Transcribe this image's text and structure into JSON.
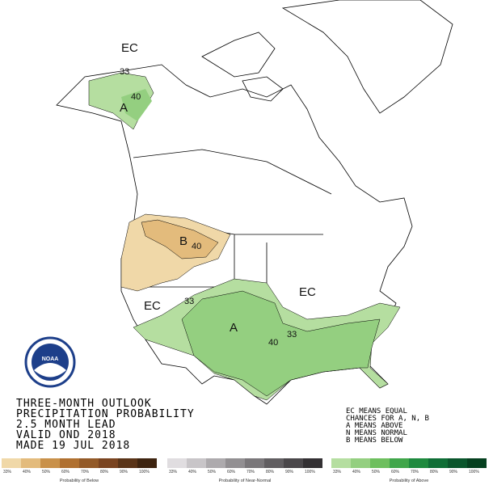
{
  "map": {
    "labels": [
      "EC",
      "33",
      "40",
      "A",
      "B",
      "40",
      "EC",
      "33",
      "A",
      "40",
      "33",
      "EC"
    ]
  },
  "logo": {
    "text": "NOAA"
  },
  "title": {
    "lines": [
      "THREE-MONTH OUTLOOK",
      "PRECIPITATION PROBABILITY",
      "2.5 MONTH LEAD",
      "VALID OND 2018",
      "MADE 19 JUL 2018"
    ]
  },
  "key": {
    "lines": [
      "EC MEANS EQUAL",
      "CHANCES FOR A, N, B",
      "A MEANS ABOVE",
      "N MEANS NORMAL",
      "B MEANS BELOW"
    ]
  },
  "colorbars": [
    {
      "caption": "Probability of Below",
      "labels": [
        "33%",
        "40%",
        "50%",
        "60%",
        "70%",
        "80%",
        "90%",
        "100%"
      ],
      "colors": [
        "#f0d8a8",
        "#e3bb7c",
        "#c9914a",
        "#b07030",
        "#935a28",
        "#7a4420",
        "#5a3418",
        "#3e2410"
      ]
    },
    {
      "caption": "Probability of Near-Normal",
      "labels": [
        "33%",
        "40%",
        "50%",
        "60%",
        "70%",
        "80%",
        "90%",
        "100%"
      ],
      "colors": [
        "#e0dde0",
        "#c8c5c8",
        "#adaaad",
        "#928f92",
        "#7a777a",
        "#615e61",
        "#4a474a",
        "#333033"
      ]
    },
    {
      "caption": "Probability of Above",
      "labels": [
        "33%",
        "40%",
        "50%",
        "60%",
        "70%",
        "80%",
        "90%",
        "100%"
      ],
      "colors": [
        "#b5dea0",
        "#94cf80",
        "#6ebf5e",
        "#40a64a",
        "#1e8a3e",
        "#0f6e36",
        "#0a562c",
        "#05401f"
      ]
    }
  ]
}
